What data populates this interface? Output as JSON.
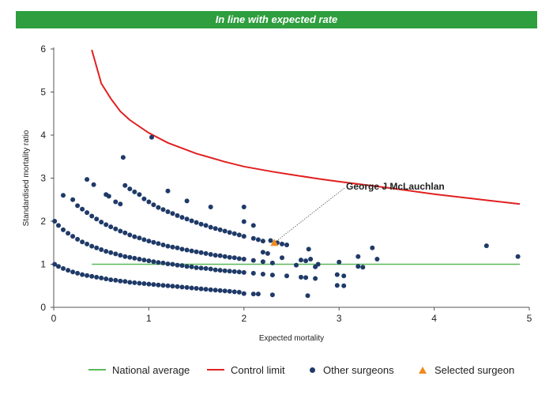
{
  "banner": {
    "text": "In line with expected rate"
  },
  "chart_data": {
    "type": "scatter",
    "title": "",
    "xlabel": "Expected mortality",
    "ylabel": "Standardised mortality ratio",
    "xlim": [
      0,
      5
    ],
    "ylim": [
      0,
      6
    ],
    "xticks": [
      "0",
      "1",
      "2",
      "3",
      "4",
      "5"
    ],
    "yticks": [
      "0",
      "1",
      "2",
      "3",
      "4",
      "5",
      "6"
    ],
    "grid": false,
    "legend_position": "bottom",
    "annotation": {
      "text": "George J McLauchlan",
      "target": [
        2.32,
        1.5
      ]
    },
    "series": [
      {
        "name": "National average",
        "kind": "line",
        "color": "#5cb85c",
        "x": [
          0.4,
          4.9
        ],
        "y": [
          1,
          1
        ]
      },
      {
        "name": "Control limit",
        "kind": "curve",
        "color": "#e02020",
        "x": [
          0.4,
          0.5,
          0.6,
          0.7,
          0.8,
          1.0,
          1.2,
          1.5,
          1.8,
          2.0,
          2.3,
          2.5,
          2.8,
          3.0,
          3.5,
          4.0,
          4.5,
          4.9
        ],
        "y": [
          5.98,
          5.2,
          4.85,
          4.55,
          4.35,
          4.05,
          3.82,
          3.57,
          3.38,
          3.27,
          3.15,
          3.08,
          2.98,
          2.92,
          2.78,
          2.63,
          2.5,
          2.4
        ]
      },
      {
        "name": "Other surgeons",
        "kind": "scatter",
        "color": "#1f3a68",
        "points": [
          [
            0.01,
            1.0
          ],
          [
            0.05,
            0.95
          ],
          [
            0.1,
            0.9
          ],
          [
            0.15,
            0.86
          ],
          [
            0.2,
            0.82
          ],
          [
            0.25,
            0.79
          ],
          [
            0.3,
            0.76
          ],
          [
            0.35,
            0.74
          ],
          [
            0.4,
            0.72
          ],
          [
            0.45,
            0.7
          ],
          [
            0.5,
            0.68
          ],
          [
            0.55,
            0.66
          ],
          [
            0.6,
            0.64
          ],
          [
            0.65,
            0.63
          ],
          [
            0.7,
            0.61
          ],
          [
            0.75,
            0.6
          ],
          [
            0.8,
            0.58
          ],
          [
            0.85,
            0.57
          ],
          [
            0.9,
            0.56
          ],
          [
            0.95,
            0.55
          ],
          [
            1.0,
            0.54
          ],
          [
            1.05,
            0.53
          ],
          [
            1.1,
            0.52
          ],
          [
            1.15,
            0.51
          ],
          [
            1.2,
            0.5
          ],
          [
            1.25,
            0.49
          ],
          [
            1.3,
            0.48
          ],
          [
            1.35,
            0.47
          ],
          [
            1.4,
            0.46
          ],
          [
            1.45,
            0.45
          ],
          [
            1.5,
            0.44
          ],
          [
            1.55,
            0.43
          ],
          [
            1.6,
            0.42
          ],
          [
            1.65,
            0.41
          ],
          [
            1.7,
            0.4
          ],
          [
            1.75,
            0.39
          ],
          [
            1.8,
            0.38
          ],
          [
            1.85,
            0.37
          ],
          [
            1.9,
            0.36
          ],
          [
            1.95,
            0.35
          ],
          [
            2.0,
            0.32
          ],
          [
            2.1,
            0.31
          ],
          [
            2.15,
            0.31
          ],
          [
            2.3,
            0.29
          ],
          [
            2.67,
            0.27
          ],
          [
            0.01,
            2.0
          ],
          [
            0.05,
            1.9
          ],
          [
            0.1,
            1.8
          ],
          [
            0.15,
            1.72
          ],
          [
            0.2,
            1.65
          ],
          [
            0.25,
            1.58
          ],
          [
            0.3,
            1.52
          ],
          [
            0.35,
            1.47
          ],
          [
            0.4,
            1.42
          ],
          [
            0.45,
            1.38
          ],
          [
            0.5,
            1.34
          ],
          [
            0.55,
            1.3
          ],
          [
            0.6,
            1.27
          ],
          [
            0.65,
            1.24
          ],
          [
            0.7,
            1.21
          ],
          [
            0.75,
            1.18
          ],
          [
            0.8,
            1.16
          ],
          [
            0.85,
            1.14
          ],
          [
            0.9,
            1.12
          ],
          [
            0.95,
            1.1
          ],
          [
            1.0,
            1.08
          ],
          [
            1.05,
            1.06
          ],
          [
            1.1,
            1.04
          ],
          [
            1.15,
            1.03
          ],
          [
            1.2,
            1.01
          ],
          [
            1.25,
            1.0
          ],
          [
            1.3,
            0.98
          ],
          [
            1.35,
            0.97
          ],
          [
            1.4,
            0.95
          ],
          [
            1.45,
            0.94
          ],
          [
            1.5,
            0.92
          ],
          [
            1.55,
            0.91
          ],
          [
            1.6,
            0.9
          ],
          [
            1.65,
            0.89
          ],
          [
            1.7,
            0.87
          ],
          [
            1.75,
            0.86
          ],
          [
            1.8,
            0.85
          ],
          [
            1.85,
            0.84
          ],
          [
            1.9,
            0.83
          ],
          [
            1.95,
            0.82
          ],
          [
            2.0,
            0.81
          ],
          [
            2.1,
            0.79
          ],
          [
            2.2,
            0.77
          ],
          [
            2.3,
            0.75
          ],
          [
            2.45,
            0.73
          ],
          [
            2.6,
            0.7
          ],
          [
            2.65,
            0.69
          ],
          [
            2.75,
            0.67
          ],
          [
            2.98,
            0.51
          ],
          [
            3.05,
            0.5
          ],
          [
            0.25,
            2.36
          ],
          [
            0.3,
            2.28
          ],
          [
            0.35,
            2.2
          ],
          [
            0.4,
            2.12
          ],
          [
            0.45,
            2.05
          ],
          [
            0.5,
            1.98
          ],
          [
            0.55,
            1.92
          ],
          [
            0.6,
            1.87
          ],
          [
            0.65,
            1.82
          ],
          [
            0.7,
            1.77
          ],
          [
            0.75,
            1.73
          ],
          [
            0.8,
            1.68
          ],
          [
            0.85,
            1.64
          ],
          [
            0.9,
            1.61
          ],
          [
            0.95,
            1.57
          ],
          [
            1.0,
            1.54
          ],
          [
            1.05,
            1.51
          ],
          [
            1.1,
            1.48
          ],
          [
            1.15,
            1.45
          ],
          [
            1.2,
            1.42
          ],
          [
            1.25,
            1.4
          ],
          [
            1.3,
            1.38
          ],
          [
            1.35,
            1.35
          ],
          [
            1.4,
            1.33
          ],
          [
            1.45,
            1.31
          ],
          [
            1.5,
            1.29
          ],
          [
            1.55,
            1.27
          ],
          [
            1.6,
            1.25
          ],
          [
            1.65,
            1.23
          ],
          [
            1.7,
            1.21
          ],
          [
            1.75,
            1.2
          ],
          [
            1.8,
            1.18
          ],
          [
            1.85,
            1.16
          ],
          [
            1.9,
            1.15
          ],
          [
            1.95,
            1.13
          ],
          [
            2.0,
            1.12
          ],
          [
            2.1,
            1.09
          ],
          [
            2.2,
            1.06
          ],
          [
            2.3,
            1.03
          ],
          [
            2.55,
            0.98
          ],
          [
            2.75,
            0.94
          ],
          [
            2.98,
            0.76
          ],
          [
            3.05,
            0.73
          ],
          [
            3.2,
            0.95
          ],
          [
            3.25,
            0.93
          ],
          [
            0.1,
            2.6
          ],
          [
            0.2,
            2.5
          ],
          [
            0.35,
            2.97
          ],
          [
            0.42,
            2.85
          ],
          [
            0.55,
            2.62
          ],
          [
            0.58,
            2.58
          ],
          [
            0.65,
            2.45
          ],
          [
            0.7,
            2.4
          ],
          [
            0.75,
            2.83
          ],
          [
            0.8,
            2.75
          ],
          [
            0.85,
            2.68
          ],
          [
            0.9,
            2.62
          ],
          [
            0.95,
            2.52
          ],
          [
            1.0,
            2.45
          ],
          [
            1.05,
            2.38
          ],
          [
            1.1,
            2.32
          ],
          [
            1.15,
            2.27
          ],
          [
            1.2,
            2.22
          ],
          [
            1.25,
            2.18
          ],
          [
            1.3,
            2.13
          ],
          [
            1.35,
            2.09
          ],
          [
            1.4,
            2.05
          ],
          [
            1.45,
            2.01
          ],
          [
            1.5,
            1.97
          ],
          [
            1.55,
            1.93
          ],
          [
            1.6,
            1.9
          ],
          [
            1.65,
            1.86
          ],
          [
            1.7,
            1.83
          ],
          [
            1.75,
            1.8
          ],
          [
            1.8,
            1.77
          ],
          [
            1.85,
            1.74
          ],
          [
            1.9,
            1.71
          ],
          [
            1.95,
            1.68
          ],
          [
            2.0,
            1.65
          ],
          [
            2.1,
            1.6
          ],
          [
            2.15,
            1.57
          ],
          [
            2.2,
            1.54
          ],
          [
            2.35,
            1.5
          ],
          [
            2.45,
            1.45
          ],
          [
            1.2,
            2.7
          ],
          [
            1.4,
            2.47
          ],
          [
            1.65,
            2.33
          ],
          [
            2.0,
            2.33
          ],
          [
            0.73,
            3.48
          ],
          [
            1.03,
            3.95
          ],
          [
            2.0,
            1.99
          ],
          [
            2.1,
            1.9
          ],
          [
            2.2,
            1.28
          ],
          [
            2.25,
            1.25
          ],
          [
            2.28,
            1.55
          ],
          [
            2.4,
            1.47
          ],
          [
            2.4,
            1.15
          ],
          [
            2.6,
            1.1
          ],
          [
            2.65,
            1.08
          ],
          [
            2.68,
            1.35
          ],
          [
            2.7,
            1.12
          ],
          [
            2.78,
            1.0
          ],
          [
            3.0,
            1.05
          ],
          [
            3.2,
            1.18
          ],
          [
            3.35,
            1.38
          ],
          [
            3.4,
            1.12
          ],
          [
            4.55,
            1.43
          ],
          [
            4.88,
            1.18
          ]
        ]
      },
      {
        "name": "Selected surgeon",
        "kind": "marker",
        "color": "#f08a1c",
        "points": [
          [
            2.32,
            1.5
          ]
        ]
      }
    ]
  },
  "legend": {
    "national_average": "National average",
    "control_limit": "Control limit",
    "other_surgeons": "Other surgeons",
    "selected_surgeon": "Selected surgeon"
  }
}
